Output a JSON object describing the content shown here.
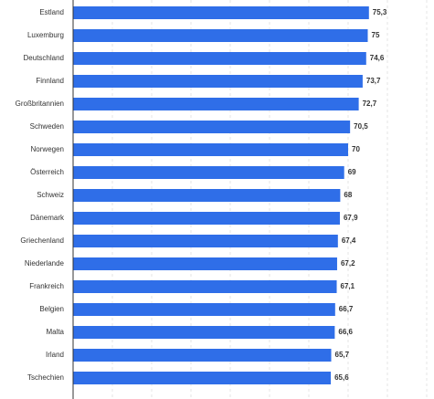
{
  "chart_data": {
    "type": "bar",
    "orientation": "horizontal",
    "categories": [
      "Estland",
      "Luxemburg",
      "Deutschland",
      "Finnland",
      "Großbritannien",
      "Schweden",
      "Norwegen",
      "Österreich",
      "Schweiz",
      "Dänemark",
      "Griechenland",
      "Niederlande",
      "Frankreich",
      "Belgien",
      "Malta",
      "Irland",
      "Tschechien"
    ],
    "values": [
      75.3,
      75,
      74.6,
      73.7,
      72.7,
      70.5,
      70,
      69,
      68,
      67.9,
      67.4,
      67.2,
      67.1,
      66.7,
      66.6,
      65.7,
      65.6
    ],
    "value_labels": [
      "75,3",
      "75",
      "74,6",
      "73,7",
      "72,7",
      "70,5",
      "70",
      "69",
      "68",
      "67,9",
      "67,4",
      "67,2",
      "67,1",
      "66,7",
      "66,6",
      "65,7",
      "65,6"
    ],
    "xlim": [
      0,
      90
    ],
    "grid": true,
    "bar_color": "#2f6ee8"
  }
}
